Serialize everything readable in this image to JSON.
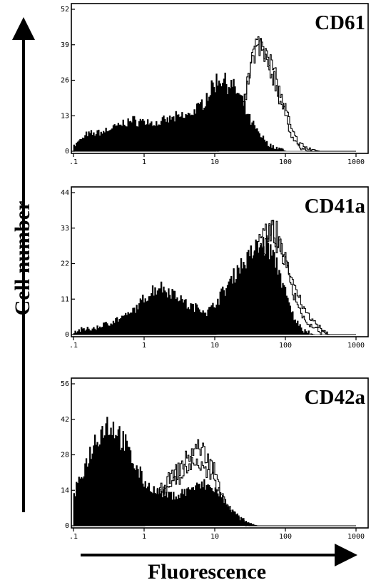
{
  "figure": {
    "ylabel": "Cell number",
    "xlabel": "Fluorescence"
  },
  "chart_data": [
    {
      "type": "area",
      "title": "CD61",
      "xscale": "log",
      "xlim": [
        0.1,
        1000
      ],
      "ylim": [
        0,
        52
      ],
      "xticks": [
        ".1",
        "1",
        "10",
        "100",
        "1000"
      ],
      "yticks": [
        "0",
        "13",
        "26",
        "39",
        "52"
      ],
      "series": [
        {
          "fill": "#000000",
          "x": [
            0.1,
            0.15,
            0.25,
            0.4,
            0.6,
            0.9,
            1.5,
            2.5,
            4,
            6,
            8,
            10,
            12,
            15,
            20,
            25,
            30,
            40,
            50,
            60,
            80,
            100,
            150,
            200
          ],
          "values": [
            2,
            6,
            7,
            9,
            11,
            11,
            10,
            12,
            13,
            16,
            21,
            25,
            27,
            25,
            22,
            17,
            12,
            7,
            4,
            2,
            1,
            0,
            0,
            0
          ]
        },
        {
          "fill": "none",
          "x": [
            0.1,
            0.3,
            1,
            3,
            6,
            10,
            15,
            20,
            25,
            30,
            35,
            40,
            45,
            50,
            55,
            60,
            70,
            80,
            100,
            120,
            150,
            200,
            300
          ],
          "values": [
            0,
            0,
            0,
            0,
            0,
            0,
            2,
            8,
            18,
            30,
            36,
            39,
            40,
            38,
            36,
            33,
            28,
            22,
            15,
            8,
            3,
            1,
            0
          ]
        },
        {
          "fill": "none",
          "x": [
            0.1,
            1,
            5,
            10,
            15,
            20,
            25,
            30,
            35,
            40,
            45,
            50,
            55,
            60,
            70,
            80,
            100,
            120,
            150,
            200,
            300
          ],
          "values": [
            0,
            0,
            0,
            0,
            2,
            7,
            16,
            28,
            34,
            38,
            37,
            35,
            32,
            30,
            26,
            20,
            12,
            6,
            2,
            0,
            0
          ]
        }
      ]
    },
    {
      "type": "area",
      "title": "CD41a",
      "xscale": "log",
      "xlim": [
        0.1,
        1000
      ],
      "ylim": [
        0,
        44
      ],
      "xticks": [
        ".1",
        "1",
        "10",
        "100",
        "1000"
      ],
      "yticks": [
        "0",
        "11",
        "22",
        "33",
        "44"
      ],
      "series": [
        {
          "fill": "#000000",
          "x": [
            0.1,
            0.2,
            0.35,
            0.6,
            0.9,
            1.2,
            1.6,
            2,
            3,
            4,
            6,
            8,
            10,
            14,
            20,
            30,
            40,
            50,
            60,
            80,
            100,
            130,
            180,
            250
          ],
          "values": [
            1,
            2,
            4,
            6,
            10,
            13,
            15,
            14,
            12,
            9,
            8,
            7,
            10,
            14,
            20,
            24,
            27,
            28,
            26,
            20,
            12,
            5,
            1,
            0
          ]
        },
        {
          "fill": "none",
          "x": [
            0.1,
            1,
            5,
            10,
            15,
            20,
            30,
            40,
            50,
            60,
            70,
            80,
            100,
            120,
            150,
            200,
            300,
            400
          ],
          "values": [
            0,
            0,
            0,
            0,
            4,
            12,
            20,
            26,
            30,
            32,
            30,
            28,
            24,
            18,
            12,
            6,
            2,
            0
          ]
        },
        {
          "fill": "none",
          "x": [
            0.1,
            1,
            5,
            10,
            15,
            20,
            30,
            40,
            50,
            60,
            70,
            80,
            100,
            120,
            150,
            200,
            300,
            400
          ],
          "values": [
            0,
            0,
            0,
            0,
            3,
            10,
            18,
            24,
            29,
            33,
            31,
            29,
            22,
            15,
            9,
            3,
            1,
            0
          ]
        }
      ]
    },
    {
      "type": "area",
      "title": "CD42a",
      "xscale": "log",
      "xlim": [
        0.1,
        1000
      ],
      "ylim": [
        0,
        56
      ],
      "xticks": [
        ".1",
        "1",
        "10",
        "100",
        "1000"
      ],
      "yticks": [
        "0",
        "14",
        "28",
        "42",
        "56"
      ],
      "series": [
        {
          "fill": "#000000",
          "x": [
            0.1,
            0.15,
            0.2,
            0.25,
            0.3,
            0.4,
            0.5,
            0.7,
            1,
            1.5,
            2,
            3,
            4,
            5,
            7,
            10,
            13,
            17,
            22,
            30,
            40
          ],
          "values": [
            12,
            25,
            34,
            38,
            40,
            38,
            33,
            25,
            17,
            13,
            12,
            12,
            14,
            15,
            16,
            14,
            10,
            6,
            3,
            1,
            0
          ]
        },
        {
          "fill": "none",
          "x": [
            0.1,
            0.5,
            1,
            1.5,
            2,
            3,
            4,
            5,
            6,
            7,
            8,
            10,
            12,
            15,
            20,
            30
          ],
          "values": [
            0,
            0,
            0,
            12,
            17,
            22,
            27,
            30,
            31,
            29,
            26,
            21,
            15,
            8,
            3,
            0
          ]
        },
        {
          "fill": "none",
          "x": [
            0.1,
            0.5,
            1,
            1.5,
            2,
            3,
            4,
            5,
            6,
            7,
            8,
            10,
            12,
            15,
            20,
            30
          ],
          "values": [
            0,
            0,
            0,
            12,
            15,
            19,
            22,
            26,
            24,
            22,
            20,
            17,
            12,
            6,
            2,
            0
          ]
        }
      ]
    }
  ]
}
